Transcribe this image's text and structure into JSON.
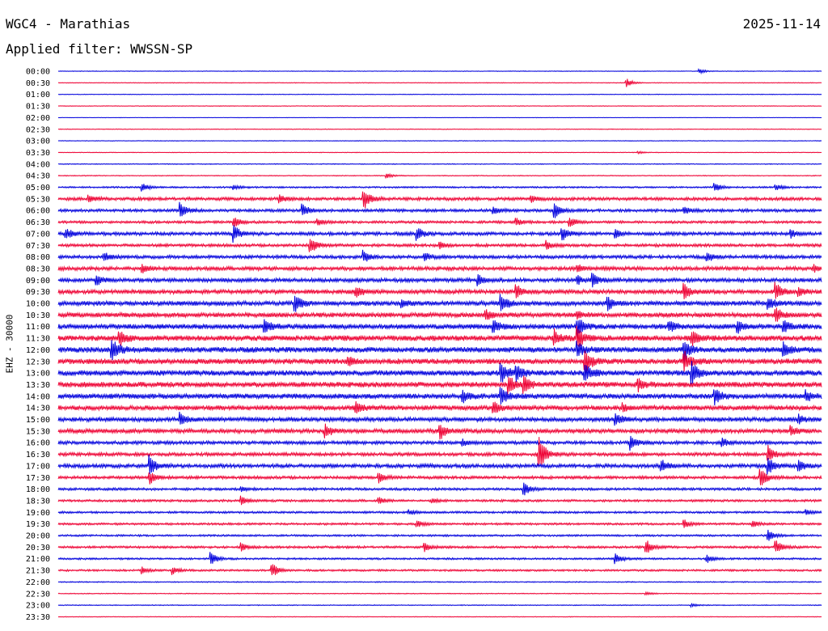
{
  "header": {
    "station": "WGC4 - Marathias",
    "date": "2025-11-14",
    "filter": "Applied filter: WWSSN-SP"
  },
  "channel_label": "EHZ - 30000",
  "colors": {
    "blue": "#0000dd",
    "red": "#ee0033",
    "background": "#ffffff"
  },
  "chart_data": {
    "type": "line",
    "title": "WGC4 - Marathias",
    "subtitle": "Applied filter: WWSSN-SP",
    "ylabel": "EHZ - 30000",
    "trace_colors_alternating": [
      "blue",
      "red"
    ],
    "rows": [
      {
        "label": "00:00",
        "level": 0.3,
        "events": [
          {
            "t": 0.84,
            "a": 3
          }
        ]
      },
      {
        "label": "00:30",
        "level": 0.3,
        "events": [
          {
            "t": 0.745,
            "a": 5
          }
        ]
      },
      {
        "label": "01:00",
        "level": 0.3,
        "events": []
      },
      {
        "label": "01:30",
        "level": 0.3,
        "events": []
      },
      {
        "label": "02:00",
        "level": 0.2,
        "events": []
      },
      {
        "label": "02:30",
        "level": 0.3,
        "events": []
      },
      {
        "label": "03:00",
        "level": 0.3,
        "events": []
      },
      {
        "label": "03:30",
        "level": 0.3,
        "events": [
          {
            "t": 0.76,
            "a": 1.5
          }
        ]
      },
      {
        "label": "04:00",
        "level": 0.4,
        "events": []
      },
      {
        "label": "04:30",
        "level": 0.4,
        "events": [
          {
            "t": 0.43,
            "a": 3
          }
        ]
      },
      {
        "label": "05:00",
        "level": 0.8,
        "events": [
          {
            "t": 0.11,
            "a": 5
          },
          {
            "t": 0.23,
            "a": 3
          },
          {
            "t": 0.86,
            "a": 6
          },
          {
            "t": 0.94,
            "a": 4
          }
        ]
      },
      {
        "label": "05:30",
        "level": 1.5,
        "events": [
          {
            "t": 0.04,
            "a": 4
          },
          {
            "t": 0.4,
            "a": 14
          },
          {
            "t": 0.29,
            "a": 4
          },
          {
            "t": 0.62,
            "a": 4
          }
        ]
      },
      {
        "label": "06:00",
        "level": 1.4,
        "events": [
          {
            "t": 0.16,
            "a": 10
          },
          {
            "t": 0.32,
            "a": 8
          },
          {
            "t": 0.57,
            "a": 5
          },
          {
            "t": 0.65,
            "a": 9
          },
          {
            "t": 0.82,
            "a": 5
          }
        ]
      },
      {
        "label": "06:30",
        "level": 1.2,
        "events": [
          {
            "t": 0.23,
            "a": 7
          },
          {
            "t": 0.34,
            "a": 4
          },
          {
            "t": 0.6,
            "a": 5
          },
          {
            "t": 0.67,
            "a": 6
          }
        ]
      },
      {
        "label": "07:00",
        "level": 1.6,
        "events": [
          {
            "t": 0.01,
            "a": 7
          },
          {
            "t": 0.23,
            "a": 10
          },
          {
            "t": 0.47,
            "a": 8
          },
          {
            "t": 0.66,
            "a": 9
          },
          {
            "t": 0.73,
            "a": 5
          },
          {
            "t": 0.96,
            "a": 5
          }
        ]
      },
      {
        "label": "07:30",
        "level": 1.4,
        "events": [
          {
            "t": 0.33,
            "a": 10
          },
          {
            "t": 0.5,
            "a": 4
          },
          {
            "t": 0.64,
            "a": 5
          }
        ]
      },
      {
        "label": "08:00",
        "level": 1.6,
        "events": [
          {
            "t": 0.06,
            "a": 6
          },
          {
            "t": 0.4,
            "a": 7
          },
          {
            "t": 0.48,
            "a": 5
          },
          {
            "t": 0.85,
            "a": 6
          }
        ]
      },
      {
        "label": "08:30",
        "level": 1.8,
        "events": [
          {
            "t": 0.11,
            "a": 5
          },
          {
            "t": 0.68,
            "a": 5
          },
          {
            "t": 0.99,
            "a": 4
          }
        ]
      },
      {
        "label": "09:00",
        "level": 1.8,
        "events": [
          {
            "t": 0.05,
            "a": 6
          },
          {
            "t": 0.55,
            "a": 6
          },
          {
            "t": 0.7,
            "a": 8
          },
          {
            "t": 0.68,
            "a": 5
          }
        ]
      },
      {
        "label": "09:30",
        "level": 2.0,
        "events": [
          {
            "t": 0.39,
            "a": 7
          },
          {
            "t": 0.6,
            "a": 8
          },
          {
            "t": 0.82,
            "a": 10
          },
          {
            "t": 0.94,
            "a": 10
          },
          {
            "t": 0.97,
            "a": 5
          }
        ]
      },
      {
        "label": "10:00",
        "level": 2.2,
        "events": [
          {
            "t": 0.31,
            "a": 12
          },
          {
            "t": 0.45,
            "a": 4
          },
          {
            "t": 0.58,
            "a": 12
          },
          {
            "t": 0.72,
            "a": 8
          },
          {
            "t": 0.93,
            "a": 7
          }
        ]
      },
      {
        "label": "10:30",
        "level": 2.2,
        "events": [
          {
            "t": 0.56,
            "a": 7
          },
          {
            "t": 0.68,
            "a": 5
          },
          {
            "t": 0.94,
            "a": 9
          }
        ]
      },
      {
        "label": "11:00",
        "level": 2.4,
        "events": [
          {
            "t": 0.27,
            "a": 9
          },
          {
            "t": 0.57,
            "a": 8
          },
          {
            "t": 0.68,
            "a": 12
          },
          {
            "t": 0.8,
            "a": 7
          },
          {
            "t": 0.89,
            "a": 8
          },
          {
            "t": 0.95,
            "a": 7
          }
        ]
      },
      {
        "label": "11:30",
        "level": 2.6,
        "events": [
          {
            "t": 0.08,
            "a": 9
          },
          {
            "t": 0.65,
            "a": 10
          },
          {
            "t": 0.68,
            "a": 13
          },
          {
            "t": 0.83,
            "a": 9
          }
        ]
      },
      {
        "label": "12:00",
        "level": 2.6,
        "events": [
          {
            "t": 0.07,
            "a": 16
          },
          {
            "t": 0.68,
            "a": 10
          },
          {
            "t": 0.82,
            "a": 13
          },
          {
            "t": 0.95,
            "a": 11
          }
        ]
      },
      {
        "label": "12:30",
        "level": 2.6,
        "events": [
          {
            "t": 0.69,
            "a": 14
          },
          {
            "t": 0.82,
            "a": 12
          },
          {
            "t": 0.38,
            "a": 5
          }
        ]
      },
      {
        "label": "13:00",
        "level": 2.6,
        "events": [
          {
            "t": 0.58,
            "a": 14
          },
          {
            "t": 0.6,
            "a": 10
          },
          {
            "t": 0.69,
            "a": 12
          },
          {
            "t": 0.83,
            "a": 14
          }
        ]
      },
      {
        "label": "13:30",
        "level": 2.6,
        "events": [
          {
            "t": 0.59,
            "a": 12
          },
          {
            "t": 0.61,
            "a": 9
          },
          {
            "t": 0.76,
            "a": 7
          }
        ]
      },
      {
        "label": "14:00",
        "level": 2.4,
        "events": [
          {
            "t": 0.53,
            "a": 7
          },
          {
            "t": 0.58,
            "a": 12
          },
          {
            "t": 0.86,
            "a": 9
          },
          {
            "t": 0.98,
            "a": 6
          }
        ]
      },
      {
        "label": "14:30",
        "level": 2.2,
        "events": [
          {
            "t": 0.39,
            "a": 7
          },
          {
            "t": 0.57,
            "a": 8
          },
          {
            "t": 0.74,
            "a": 5
          }
        ]
      },
      {
        "label": "15:00",
        "level": 2.0,
        "events": [
          {
            "t": 0.16,
            "a": 8
          },
          {
            "t": 0.73,
            "a": 8
          },
          {
            "t": 0.97,
            "a": 5
          }
        ]
      },
      {
        "label": "15:30",
        "level": 2.0,
        "events": [
          {
            "t": 0.35,
            "a": 7
          },
          {
            "t": 0.5,
            "a": 10
          },
          {
            "t": 0.96,
            "a": 6
          }
        ]
      },
      {
        "label": "16:00",
        "level": 1.6,
        "events": [
          {
            "t": 0.53,
            "a": 4
          },
          {
            "t": 0.75,
            "a": 9
          },
          {
            "t": 0.87,
            "a": 5
          }
        ]
      },
      {
        "label": "16:30",
        "level": 1.6,
        "events": [
          {
            "t": 0.63,
            "a": 22
          },
          {
            "t": 0.93,
            "a": 10
          }
        ]
      },
      {
        "label": "17:00",
        "level": 1.8,
        "events": [
          {
            "t": 0.12,
            "a": 12
          },
          {
            "t": 0.79,
            "a": 8
          },
          {
            "t": 0.93,
            "a": 10
          },
          {
            "t": 0.97,
            "a": 7
          }
        ]
      },
      {
        "label": "17:30",
        "level": 1.4,
        "events": [
          {
            "t": 0.12,
            "a": 8
          },
          {
            "t": 0.42,
            "a": 6
          },
          {
            "t": 0.92,
            "a": 12
          }
        ]
      },
      {
        "label": "18:00",
        "level": 1.2,
        "events": [
          {
            "t": 0.24,
            "a": 3
          },
          {
            "t": 0.61,
            "a": 8
          }
        ]
      },
      {
        "label": "18:30",
        "level": 1.1,
        "events": [
          {
            "t": 0.24,
            "a": 6
          },
          {
            "t": 0.42,
            "a": 4
          },
          {
            "t": 0.49,
            "a": 3
          }
        ]
      },
      {
        "label": "19:00",
        "level": 1.0,
        "events": [
          {
            "t": 0.46,
            "a": 3
          },
          {
            "t": 0.98,
            "a": 3
          }
        ]
      },
      {
        "label": "19:30",
        "level": 1.0,
        "events": [
          {
            "t": 0.47,
            "a": 5
          },
          {
            "t": 0.82,
            "a": 5
          },
          {
            "t": 0.91,
            "a": 4
          }
        ]
      },
      {
        "label": "20:00",
        "level": 0.9,
        "events": [
          {
            "t": 0.93,
            "a": 8
          }
        ]
      },
      {
        "label": "20:30",
        "level": 1.1,
        "events": [
          {
            "t": 0.24,
            "a": 5
          },
          {
            "t": 0.48,
            "a": 5
          },
          {
            "t": 0.77,
            "a": 9
          },
          {
            "t": 0.94,
            "a": 9
          }
        ]
      },
      {
        "label": "21:00",
        "level": 0.9,
        "events": [
          {
            "t": 0.2,
            "a": 8
          },
          {
            "t": 0.85,
            "a": 5
          },
          {
            "t": 0.73,
            "a": 6
          }
        ]
      },
      {
        "label": "21:30",
        "level": 0.9,
        "events": [
          {
            "t": 0.11,
            "a": 4
          },
          {
            "t": 0.15,
            "a": 5
          },
          {
            "t": 0.28,
            "a": 9
          }
        ]
      },
      {
        "label": "22:00",
        "level": 0.5,
        "events": []
      },
      {
        "label": "22:30",
        "level": 0.4,
        "events": [
          {
            "t": 0.77,
            "a": 2
          }
        ]
      },
      {
        "label": "23:00",
        "level": 0.4,
        "events": [
          {
            "t": 0.83,
            "a": 2
          }
        ]
      },
      {
        "label": "23:30",
        "level": 0.3,
        "events": []
      }
    ]
  }
}
